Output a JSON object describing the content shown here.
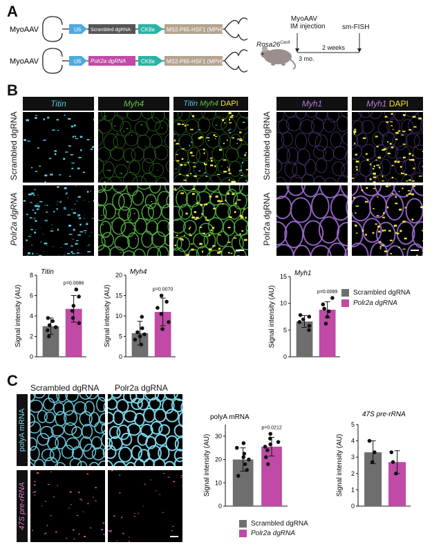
{
  "panelA": {
    "letter": "A",
    "constructs": [
      {
        "vector": "MyoAAV",
        "promoter": "U6",
        "guide": "Scrambled dgRNA",
        "muscle_promoter": "CK8e",
        "activator": "MS2-P65-HSF1 (MPH)"
      },
      {
        "vector": "MyoAAV",
        "promoter": "U6",
        "guide": "Polr2a dgRNA",
        "muscle_promoter": "CK8e",
        "activator": "MS2-P65-HSF1 (MPH)"
      }
    ],
    "timeline": {
      "mouse": "Rosa26",
      "mouse_sup": "Cas9",
      "injection": "MyoAAV\nIM injection",
      "injection_line1": "MyoAAV",
      "injection_line2": "IM injection",
      "age": "3 mo.",
      "interval": "2 weeks",
      "readout": "sm-FISH"
    },
    "colors": {
      "u6": "#4fa9e0",
      "scrambled": "#555555",
      "polr2a": "#c04aa6",
      "ck8e": "#2bb3a3",
      "mph": "#b4a38e"
    }
  },
  "panelB": {
    "letter": "B",
    "left_headers": [
      "Titin",
      "Myh4",
      "Titin",
      "Myh4",
      "DAPI"
    ],
    "right_headers": [
      "Myh1",
      "Myh1",
      "DAPI"
    ],
    "rows": [
      "Scrambled dgRNA",
      "Polr2a dgRNA"
    ],
    "chart_data": [
      {
        "type": "bar",
        "title": "Titin",
        "ylabel": "Signal intensity (AU)",
        "ylim": [
          0,
          8
        ],
        "yticks": [
          0,
          2,
          4,
          6,
          8
        ],
        "categories": [
          "Scrambled dgRNA",
          "Polr2a dgRNA"
        ],
        "values": [
          3.0,
          4.7
        ],
        "errors": [
          0.8,
          1.3
        ],
        "points": [
          [
            2.0,
            2.6,
            2.9,
            3.1,
            3.5,
            3.8
          ],
          [
            3.3,
            3.8,
            4.5,
            5.0,
            5.9,
            6.6
          ]
        ],
        "p": "p=0.0086"
      },
      {
        "type": "bar",
        "title": "Myh4",
        "ylabel": "Signal intensity (AU)",
        "ylim": [
          0,
          20
        ],
        "yticks": [
          0,
          5,
          10,
          15,
          20
        ],
        "categories": [
          "Scrambled dgRNA",
          "Polr2a dgRNA"
        ],
        "values": [
          5.8,
          11.0
        ],
        "errors": [
          2.9,
          3.4
        ],
        "points": [
          [
            3.0,
            4.2,
            5.0,
            5.5,
            6.0,
            7.0,
            9.8
          ],
          [
            6.8,
            8.5,
            10.5,
            12.0,
            13.5,
            15.0
          ]
        ],
        "p": "p=0.0070"
      },
      {
        "type": "bar",
        "title": "Myh1",
        "ylabel": "Signal intensity (AU)",
        "ylim": [
          0,
          15
        ],
        "yticks": [
          0,
          5,
          10,
          15
        ],
        "categories": [
          "Scrambled dgRNA",
          "Polr2a dgRNA"
        ],
        "values": [
          6.6,
          8.8
        ],
        "errors": [
          1.1,
          1.5
        ],
        "points": [
          [
            5.0,
            5.8,
            6.5,
            7.0,
            7.5,
            7.8
          ],
          [
            6.2,
            7.5,
            8.5,
            9.0,
            9.8,
            11.0
          ]
        ],
        "p": "p=0.0089"
      }
    ],
    "legend": [
      "Scrambled dgRNA",
      "Polr2a dgRNA"
    ]
  },
  "panelC": {
    "letter": "C",
    "col_headers": [
      "Scrambled dgRNA",
      "Polr2a dgRNA"
    ],
    "row_labels": [
      "polyA mRNA",
      "47S pre-rRNA"
    ],
    "chart_data": [
      {
        "type": "bar",
        "title": "polyA mRNA",
        "ylabel": "Signal intensity (AU)",
        "ylim": [
          0,
          35
        ],
        "yticks": [
          0,
          10,
          20,
          30
        ],
        "categories": [
          "Scrambled dgRNA",
          "Polr2a dgRNA"
        ],
        "values": [
          20.0,
          25.5
        ],
        "errors": [
          5.0,
          4.0
        ],
        "points": [
          [
            13.0,
            15.5,
            18.0,
            20.0,
            21.0,
            22.5,
            25.0,
            27.0
          ],
          [
            18.0,
            21.0,
            24.0,
            25.5,
            26.5,
            27.5,
            29.0,
            31.0
          ]
        ],
        "p": "p=0.0212"
      },
      {
        "type": "bar",
        "title": "47S pre-rRNA",
        "ylabel": "Signal intensity (AU)",
        "ylim": [
          0,
          5
        ],
        "yticks": [
          0,
          1,
          2,
          3,
          4,
          5
        ],
        "categories": [
          "Scrambled dgRNA",
          "Polr2a dgRNA"
        ],
        "values": [
          3.3,
          2.7
        ],
        "errors": [
          0.7,
          0.7
        ],
        "points": [
          [
            2.7,
            3.3,
            4.0
          ],
          [
            2.0,
            2.7,
            3.3
          ]
        ],
        "p": ""
      }
    ],
    "legend": [
      "Scrambled dgRNA",
      "Polr2a dgRNA"
    ]
  },
  "colors": {
    "scrambled": "#6e6e6e",
    "polr2a": "#c04aa6",
    "titin": "#58c8e0",
    "myh4": "#5ec24a",
    "myh1": "#b07ee0",
    "dapi": "#f2ea3a"
  }
}
